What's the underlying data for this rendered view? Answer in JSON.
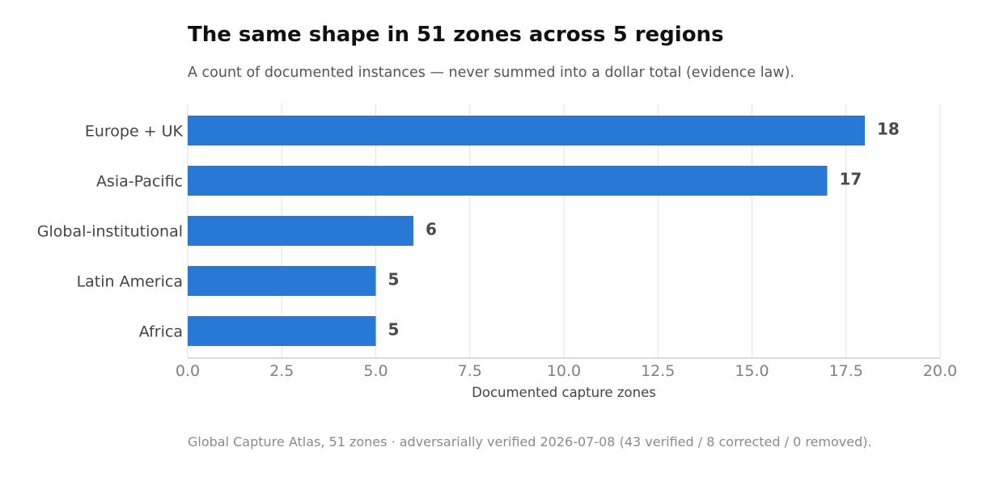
{
  "chart_data": {
    "type": "bar",
    "orientation": "horizontal",
    "title": "The same shape in 51 zones across 5 regions",
    "subtitle": "A count of documented instances — never summed into a dollar total (evidence law).",
    "xlabel": "Documented capture zones",
    "ylabel": "",
    "categories": [
      "Europe + UK",
      "Asia-Pacific",
      "Global-institutional",
      "Latin America",
      "Africa"
    ],
    "values": [
      18,
      17,
      6,
      5,
      5
    ],
    "value_labels": [
      "18",
      "17",
      "6",
      "5",
      "5"
    ],
    "xlim": [
      0,
      20
    ],
    "xticks": [
      0,
      2.5,
      5,
      7.5,
      10,
      12.5,
      15,
      17.5,
      20
    ],
    "xtick_labels": [
      "0.0",
      "2.5",
      "5.0",
      "7.5",
      "10.0",
      "12.5",
      "15.0",
      "17.5",
      "20.0"
    ],
    "grid": "vertical",
    "bar_color": "#2878d6",
    "source": "Global Capture Atlas, 51 zones · adversarially verified 2026-07-08 (43 verified / 8 corrected / 0 removed)."
  }
}
